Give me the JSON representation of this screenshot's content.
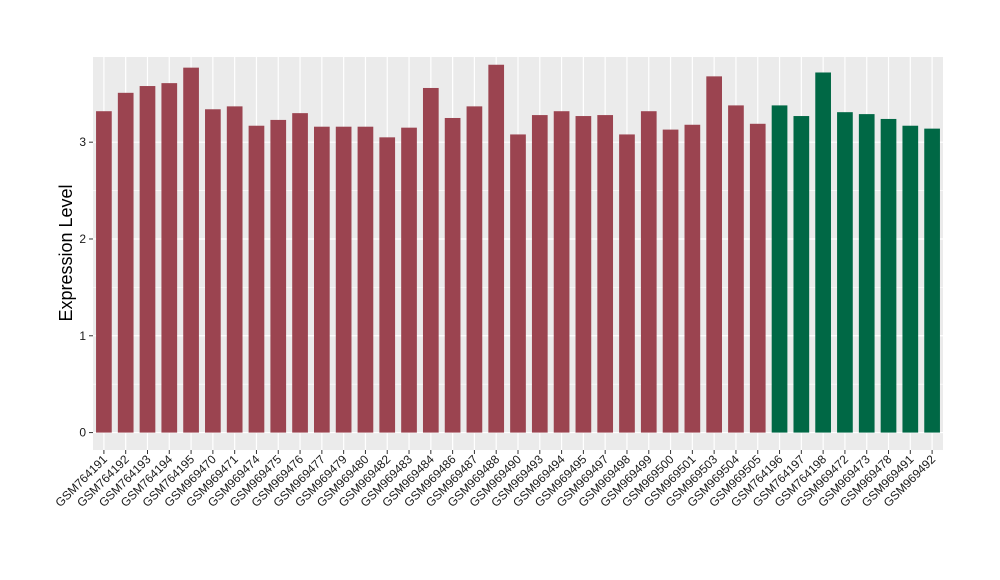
{
  "chart_data": {
    "type": "bar",
    "ylabel": "Expression Level",
    "xlabel": "",
    "ylim": [
      -0.18,
      3.88
    ],
    "yticks": [
      0,
      1,
      2,
      3
    ],
    "grid": true,
    "colors": {
      "panel": "#EBEBEB",
      "grid": "#FFFFFF",
      "group1": "#9B4450",
      "group2": "#006845"
    },
    "categories": [
      "GSM764191",
      "GSM764192",
      "GSM764193",
      "GSM764194",
      "GSM764195",
      "GSM969470",
      "GSM969471",
      "GSM969474",
      "GSM969475",
      "GSM969476",
      "GSM969477",
      "GSM969479",
      "GSM969480",
      "GSM969482",
      "GSM969483",
      "GSM969484",
      "GSM969486",
      "GSM969487",
      "GSM969488",
      "GSM969490",
      "GSM969493",
      "GSM969494",
      "GSM969495",
      "GSM969497",
      "GSM969498",
      "GSM969499",
      "GSM969500",
      "GSM969501",
      "GSM969503",
      "GSM969504",
      "GSM969505",
      "GSM764196",
      "GSM764197",
      "GSM764198",
      "GSM969472",
      "GSM969473",
      "GSM969478",
      "GSM969491",
      "GSM969492"
    ],
    "values": [
      3.32,
      3.51,
      3.58,
      3.61,
      3.77,
      3.34,
      3.37,
      3.17,
      3.23,
      3.3,
      3.16,
      3.16,
      3.16,
      3.05,
      3.15,
      3.56,
      3.25,
      3.37,
      3.8,
      3.08,
      3.28,
      3.32,
      3.27,
      3.28,
      3.08,
      3.32,
      3.13,
      3.18,
      3.68,
      3.38,
      3.19,
      3.38,
      3.27,
      3.72,
      3.31,
      3.29,
      3.24,
      3.17,
      3.14
    ],
    "groups": [
      1,
      1,
      1,
      1,
      1,
      1,
      1,
      1,
      1,
      1,
      1,
      1,
      1,
      1,
      1,
      1,
      1,
      1,
      1,
      1,
      1,
      1,
      1,
      1,
      1,
      1,
      1,
      1,
      1,
      1,
      1,
      2,
      2,
      2,
      2,
      2,
      2,
      2,
      2
    ]
  }
}
